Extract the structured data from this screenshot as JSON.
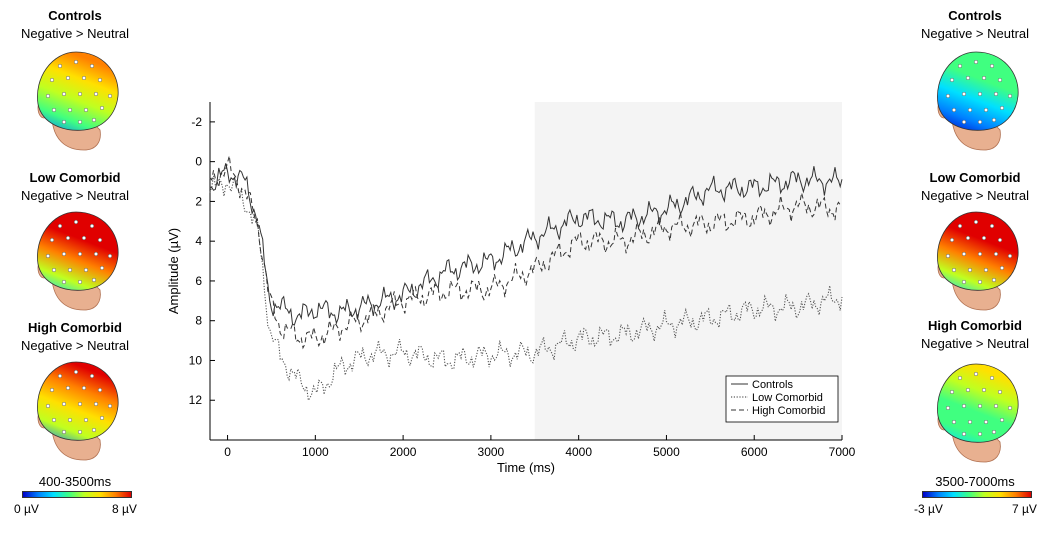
{
  "left_heads": {
    "panels": [
      {
        "title": "Controls",
        "subtitle": "Negative > Neutral",
        "map": "warm-mid"
      },
      {
        "title": "Low Comorbid",
        "subtitle": "Negative > Neutral",
        "map": "hot"
      },
      {
        "title": "High Comorbid",
        "subtitle": "Negative > Neutral",
        "map": "warm-high"
      }
    ],
    "range": "400-3500ms",
    "scale_min": "0 µV",
    "scale_max": "8 µV"
  },
  "right_heads": {
    "panels": [
      {
        "title": "Controls",
        "subtitle": "Negative > Neutral",
        "map": "cool"
      },
      {
        "title": "Low Comorbid",
        "subtitle": "Negative > Neutral",
        "map": "hot"
      },
      {
        "title": "High Comorbid",
        "subtitle": "Negative > Neutral",
        "map": "cool-mid"
      }
    ],
    "range": "3500-7000ms",
    "scale_min": "-3 µV",
    "scale_max": "7 µV"
  },
  "colors": {
    "colormap": [
      "#0000c8",
      "#0080ff",
      "#00e0ff",
      "#40ff80",
      "#c0ff20",
      "#ffe000",
      "#ff8000",
      "#e00000"
    ],
    "shade": "#f4f4f4",
    "skin": "#e8b090"
  },
  "chart_data": {
    "type": "line",
    "xlabel": "Time (ms)",
    "ylabel": "Amplitude (µV)",
    "xlim": [
      -200,
      7000
    ],
    "ylim": [
      -3,
      14
    ],
    "y_inverted": true,
    "x_ticks": [
      0,
      1000,
      2000,
      3000,
      4000,
      5000,
      6000,
      7000
    ],
    "y_ticks": [
      -2,
      0,
      2,
      4,
      6,
      8,
      10,
      12
    ],
    "shaded_region": [
      3500,
      7000
    ],
    "legend_position": "bottom-right",
    "series": [
      {
        "name": "Controls",
        "style": "solid",
        "x": [
          -200,
          0,
          200,
          350,
          480,
          600,
          800,
          1000,
          1300,
          1600,
          2000,
          2500,
          3000,
          3500,
          4000,
          4500,
          5000,
          5500,
          6000,
          6500,
          7000
        ],
        "y": [
          1.2,
          0.5,
          1.0,
          3.0,
          7.0,
          7.3,
          7.8,
          7.4,
          7.6,
          7.2,
          6.7,
          5.5,
          5.0,
          3.8,
          2.8,
          3.0,
          2.4,
          1.4,
          1.3,
          0.9,
          1.0
        ]
      },
      {
        "name": "Low Comorbid",
        "style": "dotted",
        "x": [
          -200,
          0,
          200,
          350,
          480,
          600,
          800,
          1000,
          1300,
          1600,
          2000,
          2500,
          3000,
          3500,
          4000,
          4500,
          5000,
          5500,
          6000,
          6500,
          7000
        ],
        "y": [
          1.4,
          1.0,
          2.0,
          3.5,
          8.5,
          9.8,
          11.0,
          11.7,
          10.3,
          9.7,
          9.6,
          10.0,
          9.7,
          9.6,
          8.9,
          8.7,
          8.2,
          7.9,
          7.4,
          7.3,
          6.8
        ]
      },
      {
        "name": "High Comorbid",
        "style": "dashed",
        "x": [
          -200,
          0,
          200,
          350,
          480,
          600,
          800,
          1000,
          1300,
          1600,
          2000,
          2500,
          3000,
          3500,
          4000,
          4500,
          5000,
          5500,
          6000,
          6500,
          7000
        ],
        "y": [
          1.0,
          0.3,
          1.5,
          3.2,
          7.0,
          8.3,
          8.8,
          8.9,
          8.3,
          7.8,
          7.0,
          6.5,
          6.4,
          5.4,
          4.0,
          4.0,
          3.3,
          3.1,
          2.8,
          2.2,
          2.4
        ]
      }
    ]
  }
}
